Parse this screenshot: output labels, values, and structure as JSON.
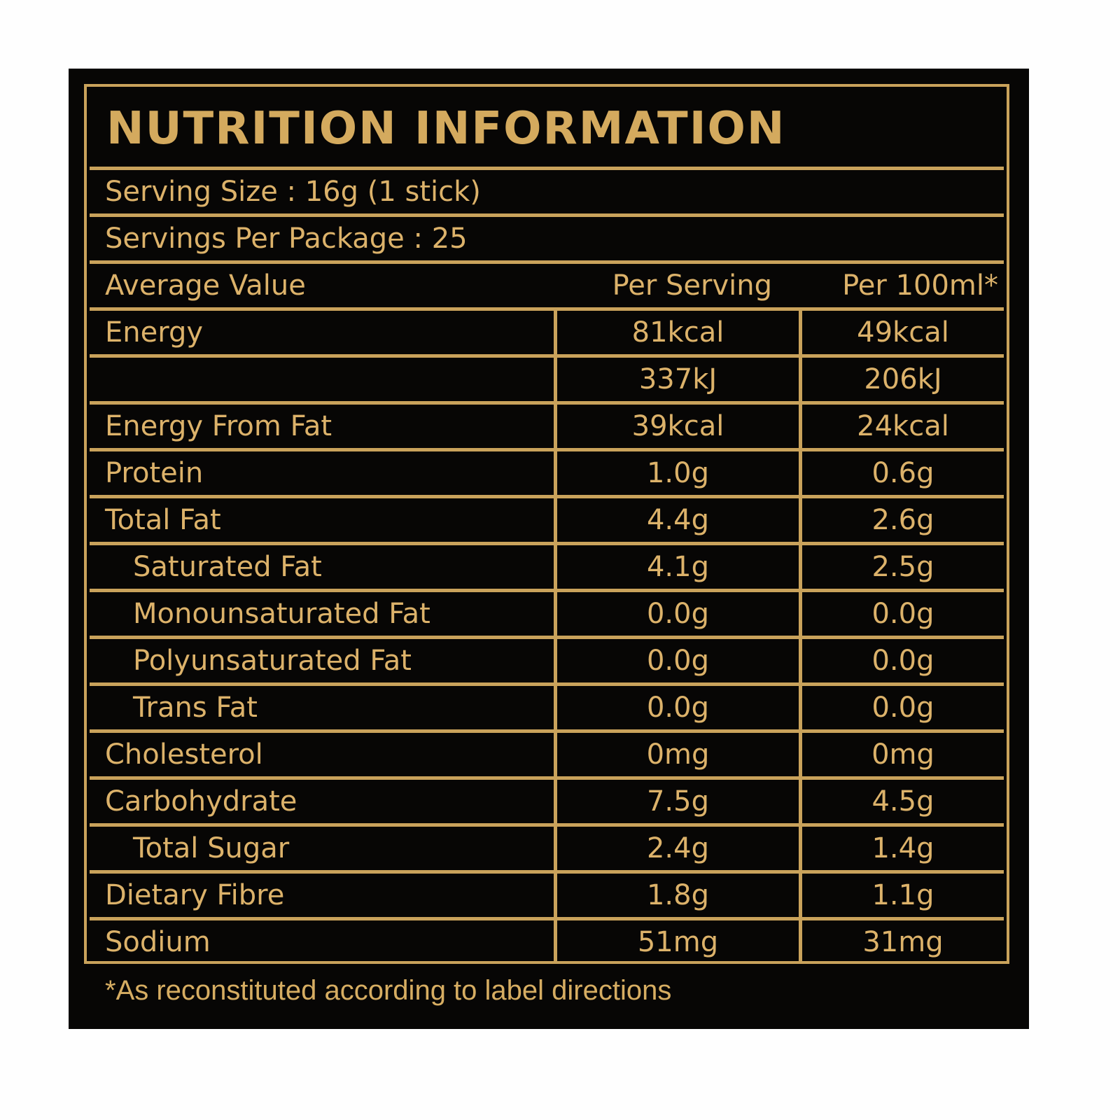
{
  "label": {
    "title": "NUTRITION INFORMATION",
    "serving_size": "Serving Size : 16g (1 stick)",
    "servings_per_package": "Servings Per Package : 25",
    "header": {
      "col1": "Average Value",
      "col2": "Per Serving",
      "col3": "Per 100ml*"
    },
    "rows": [
      {
        "name": "Energy",
        "per_serving": "81kcal",
        "per_100ml": "49kcal",
        "indent": false
      },
      {
        "name": "",
        "per_serving": "337kJ",
        "per_100ml": "206kJ",
        "indent": false
      },
      {
        "name": "Energy From Fat",
        "per_serving": "39kcal",
        "per_100ml": "24kcal",
        "indent": false
      },
      {
        "name": "Protein",
        "per_serving": "1.0g",
        "per_100ml": "0.6g",
        "indent": false
      },
      {
        "name": "Total Fat",
        "per_serving": "4.4g",
        "per_100ml": "2.6g",
        "indent": false
      },
      {
        "name": "Saturated Fat",
        "per_serving": "4.1g",
        "per_100ml": "2.5g",
        "indent": true
      },
      {
        "name": "Monounsaturated Fat",
        "per_serving": "0.0g",
        "per_100ml": "0.0g",
        "indent": true
      },
      {
        "name": "Polyunsaturated Fat",
        "per_serving": "0.0g",
        "per_100ml": "0.0g",
        "indent": true
      },
      {
        "name": "Trans Fat",
        "per_serving": "0.0g",
        "per_100ml": "0.0g",
        "indent": true
      },
      {
        "name": "Cholesterol",
        "per_serving": "0mg",
        "per_100ml": "0mg",
        "indent": false
      },
      {
        "name": "Carbohydrate",
        "per_serving": "7.5g",
        "per_100ml": "4.5g",
        "indent": false
      },
      {
        "name": "Total Sugar",
        "per_serving": "2.4g",
        "per_100ml": "1.4g",
        "indent": true
      },
      {
        "name": "Dietary Fibre",
        "per_serving": "1.8g",
        "per_100ml": "1.1g",
        "indent": false
      },
      {
        "name": "Sodium",
        "per_serving": "51mg",
        "per_100ml": "31mg",
        "indent": false
      }
    ],
    "footnote": "*As reconstituted according to label directions"
  },
  "colors": {
    "background": "#070605",
    "gold": "#c9a25b",
    "text_gold": "#dcb26a",
    "page": "#fefefe"
  }
}
